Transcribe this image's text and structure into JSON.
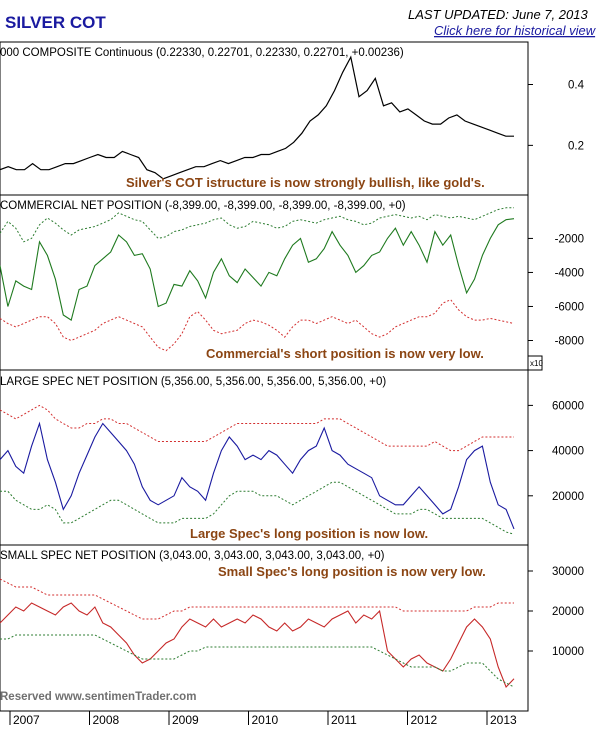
{
  "header": {
    "brand": "SILVER COT",
    "last_updated": "LAST UPDATED:  June 7, 2013",
    "historical_link": "Click here for historical view"
  },
  "footer": {
    "copyright": "Reserved  www.sentimenTrader.com"
  },
  "colors": {
    "price": "#000000",
    "commercial": "#1f7a1f",
    "large_spec": "#1a1aa0",
    "small_spec": "#c62828",
    "upper_band": "#d32f2f",
    "lower_band": "#2e7d32",
    "annotation": "#8b4513"
  },
  "x_axis": {
    "labels": [
      "2007",
      "2008",
      "2009",
      "2010",
      "2011",
      "2012",
      "2013"
    ]
  },
  "chart_data": [
    {
      "type": "line",
      "title": "000 COMPOSITE Continuous (0.22330, 0.22701, 0.22330, 0.22701, +0.00236)",
      "annotation": "Silver's COT istructure is now strongly bullish, like gold's.",
      "y_ticks": [
        "0.4",
        "0.2"
      ],
      "y_tick_values": [
        0.4,
        0.2
      ],
      "ylim": [
        0.05,
        0.52
      ],
      "series": [
        {
          "values": [
            0.12,
            0.13,
            0.12,
            0.12,
            0.14,
            0.12,
            0.12,
            0.13,
            0.14,
            0.14,
            0.15,
            0.16,
            0.17,
            0.16,
            0.16,
            0.18,
            0.17,
            0.16,
            0.12,
            0.11,
            0.09,
            0.1,
            0.11,
            0.12,
            0.13,
            0.13,
            0.14,
            0.15,
            0.14,
            0.15,
            0.16,
            0.16,
            0.17,
            0.17,
            0.18,
            0.19,
            0.21,
            0.24,
            0.28,
            0.3,
            0.33,
            0.38,
            0.44,
            0.49,
            0.36,
            0.38,
            0.42,
            0.33,
            0.34,
            0.31,
            0.32,
            0.3,
            0.28,
            0.27,
            0.27,
            0.29,
            0.3,
            0.28,
            0.27,
            0.26,
            0.25,
            0.24,
            0.23,
            0.23
          ]
        }
      ]
    },
    {
      "type": "line",
      "title": "COMMERCIAL NET POSITION (-8,399.00, -8,399.00, -8,399.00, -8,399.00, +0)",
      "annotation": "Commercial's short position is now very low.",
      "y_ticks": [
        "-2000",
        "-4000",
        "-6000",
        "-8000"
      ],
      "y_tick_values": [
        -2000,
        -4000,
        -6000,
        -8000
      ],
      "unit_note": "x10",
      "ylim": [
        -9500,
        200
      ],
      "series": [
        {
          "name": "",
          "values": [
            -3600,
            -6000,
            -4500,
            -4800,
            -5000,
            -2200,
            -3000,
            -4400,
            -6500,
            -6800,
            -5000,
            -4800,
            -3600,
            -3200,
            -2800,
            -1800,
            -2200,
            -3000,
            -2900,
            -3800,
            -6000,
            -5800,
            -4700,
            -4800,
            -3900,
            -4500,
            -5500,
            -4000,
            -3200,
            -4200,
            -4600,
            -3800,
            -4300,
            -4800,
            -4000,
            -4200,
            -3200,
            -2400,
            -2000,
            -3400,
            -3200,
            -2600,
            -1600,
            -2400,
            -3000,
            -4000,
            -3600,
            -3000,
            -2800,
            -2000,
            -1400,
            -2400,
            -1600,
            -2400,
            -3400,
            -1600,
            -2400,
            -1800,
            -3600,
            -5200,
            -4400,
            -3000,
            -2000,
            -1200,
            -900,
            -839.9
          ]
        },
        {
          "name": "",
          "values": [
            -1700,
            -1000,
            -1400,
            -2200,
            -2000,
            -1200,
            -800,
            -1100,
            -1500,
            -1800,
            -1500,
            -1400,
            -1300,
            -1100,
            -900,
            -500,
            -700,
            -900,
            -1000,
            -1500,
            -2000,
            -1900,
            -1600,
            -1500,
            -1300,
            -1200,
            -1100,
            -900,
            -800,
            -1200,
            -1400,
            -1300,
            -1000,
            -1100,
            -1200,
            -1400,
            -1300,
            -1000,
            -900,
            -1000,
            -1100,
            -900,
            -800,
            -700,
            -900,
            -1000,
            -1200,
            -1100,
            -800,
            -700,
            -600,
            -700,
            -800,
            -700,
            -900,
            -600,
            -700,
            -800,
            -700,
            -800,
            -900,
            -700,
            -500,
            -300,
            -200,
            -200
          ]
        },
        {
          "name": "",
          "values": [
            -6700,
            -7000,
            -7200,
            -7000,
            -6800,
            -6600,
            -6600,
            -7000,
            -7800,
            -8000,
            -7800,
            -7600,
            -7400,
            -7000,
            -6800,
            -6600,
            -6800,
            -7000,
            -7200,
            -7800,
            -8400,
            -8600,
            -8200,
            -7600,
            -6600,
            -6300,
            -6800,
            -7400,
            -7600,
            -7500,
            -7400,
            -7000,
            -6800,
            -6900,
            -7100,
            -7400,
            -7800,
            -7200,
            -6800,
            -6800,
            -7000,
            -6800,
            -6600,
            -6800,
            -7000,
            -6800,
            -7200,
            -7600,
            -7800,
            -7600,
            -7200,
            -7000,
            -6800,
            -6600,
            -6600,
            -6400,
            -5800,
            -5600,
            -6200,
            -6600,
            -6800,
            -6800,
            -6700,
            -6800,
            -6900,
            -7000
          ]
        }
      ]
    },
    {
      "type": "line",
      "title": "LARGE SPEC NET POSITION (5,356.00, 5,356.00, 5,356.00, 5,356.00, +0)",
      "annotation": "Large Spec's long position is now low.",
      "y_ticks": [
        "60000",
        "40000",
        "20000"
      ],
      "y_tick_values": [
        60000,
        40000,
        20000
      ],
      "ylim": [
        0,
        73000
      ],
      "series": [
        {
          "name": "",
          "values": [
            36000,
            40000,
            33000,
            30000,
            42000,
            52000,
            36000,
            26000,
            14000,
            20000,
            30000,
            38000,
            46000,
            52000,
            48000,
            44000,
            40000,
            34000,
            24000,
            18000,
            16000,
            18000,
            20000,
            28000,
            24000,
            22000,
            18000,
            30000,
            40000,
            46000,
            42000,
            36000,
            38000,
            36000,
            40000,
            38000,
            34000,
            30000,
            36000,
            40000,
            42000,
            50000,
            40000,
            38000,
            34000,
            32000,
            30000,
            28000,
            20000,
            18000,
            16000,
            16000,
            20000,
            24000,
            20000,
            16000,
            12000,
            14000,
            24000,
            36000,
            40000,
            42000,
            26000,
            16000,
            14000,
            5356
          ]
        },
        {
          "name": "",
          "values": [
            58000,
            56000,
            54000,
            56000,
            58000,
            60000,
            58000,
            54000,
            52000,
            50000,
            50000,
            52000,
            52000,
            54000,
            54000,
            52000,
            52000,
            50000,
            48000,
            46000,
            44000,
            44000,
            44000,
            44000,
            44000,
            44000,
            44000,
            46000,
            48000,
            50000,
            52000,
            52000,
            52000,
            52000,
            52000,
            52000,
            52000,
            52000,
            52000,
            52000,
            52000,
            54000,
            54000,
            54000,
            52000,
            50000,
            48000,
            46000,
            44000,
            42000,
            42000,
            42000,
            42000,
            42000,
            42000,
            44000,
            42000,
            40000,
            40000,
            42000,
            44000,
            46000,
            46000,
            46000,
            46000,
            46000
          ]
        },
        {
          "name": "",
          "values": [
            22000,
            22000,
            18000,
            16000,
            14000,
            14000,
            16000,
            14000,
            8000,
            8000,
            10000,
            12000,
            14000,
            16000,
            18000,
            18000,
            16000,
            14000,
            12000,
            10000,
            8000,
            8000,
            8000,
            10000,
            10000,
            10000,
            10000,
            12000,
            16000,
            20000,
            22000,
            22000,
            22000,
            20000,
            20000,
            20000,
            18000,
            16000,
            18000,
            20000,
            22000,
            24000,
            26000,
            26000,
            24000,
            22000,
            20000,
            18000,
            16000,
            14000,
            12000,
            12000,
            12000,
            14000,
            14000,
            12000,
            10000,
            10000,
            10000,
            10000,
            10000,
            10000,
            8000,
            6000,
            4000,
            3000
          ]
        }
      ]
    },
    {
      "type": "line",
      "title": "SMALL SPEC NET POSITION (3,043.00, 3,043.00, 3,043.00, 3,043.00, +0)",
      "annotation": "Small Spec's long position is now very low.",
      "y_ticks": [
        "30000",
        "20000",
        "10000"
      ],
      "y_tick_values": [
        30000,
        20000,
        10000
      ],
      "ylim": [
        -4000,
        35000
      ],
      "series": [
        {
          "name": "",
          "values": [
            17000,
            19000,
            21000,
            20000,
            22000,
            21000,
            20000,
            19000,
            21000,
            22000,
            20000,
            19000,
            21000,
            17000,
            16000,
            14000,
            12000,
            9000,
            7000,
            8000,
            10000,
            12000,
            13000,
            16000,
            18000,
            17000,
            16000,
            18000,
            16000,
            17000,
            18000,
            17000,
            19000,
            18000,
            16000,
            15000,
            17000,
            15000,
            16000,
            18000,
            17000,
            16000,
            18000,
            19000,
            20000,
            17000,
            19000,
            18000,
            20000,
            10000,
            8000,
            6000,
            8000,
            9000,
            7000,
            6000,
            5000,
            8000,
            12000,
            16000,
            18000,
            16000,
            13000,
            6000,
            1000,
            3043
          ]
        },
        {
          "name": "",
          "values": [
            28000,
            27000,
            26000,
            26000,
            26000,
            25000,
            24000,
            24000,
            24000,
            24000,
            24000,
            24000,
            24000,
            23000,
            22000,
            21000,
            20000,
            19000,
            18000,
            18000,
            18000,
            19000,
            20000,
            20000,
            21000,
            21000,
            21000,
            21000,
            21000,
            21000,
            21000,
            21000,
            21000,
            21000,
            21000,
            21000,
            21000,
            21000,
            21000,
            21000,
            21000,
            21000,
            21000,
            21000,
            21000,
            21000,
            21000,
            21000,
            21000,
            21000,
            21000,
            20000,
            20000,
            20000,
            20000,
            20000,
            20000,
            20000,
            20000,
            20000,
            21000,
            21000,
            21000,
            22000,
            22000,
            22000
          ]
        },
        {
          "name": "",
          "values": [
            13000,
            13000,
            14000,
            14000,
            14000,
            14000,
            14000,
            14000,
            14000,
            14000,
            14000,
            14000,
            14000,
            13000,
            12000,
            11000,
            10000,
            9000,
            8000,
            8000,
            8000,
            8000,
            8000,
            9000,
            10000,
            10000,
            11000,
            11000,
            11000,
            11000,
            11000,
            11000,
            11000,
            11000,
            11000,
            11000,
            11000,
            11000,
            11000,
            11000,
            11000,
            11000,
            11000,
            11000,
            11000,
            11000,
            11000,
            11000,
            10000,
            9000,
            8000,
            7000,
            6000,
            6000,
            6000,
            6000,
            5000,
            5000,
            6000,
            7000,
            7000,
            7000,
            5000,
            3000,
            2000,
            1000
          ]
        }
      ]
    }
  ]
}
